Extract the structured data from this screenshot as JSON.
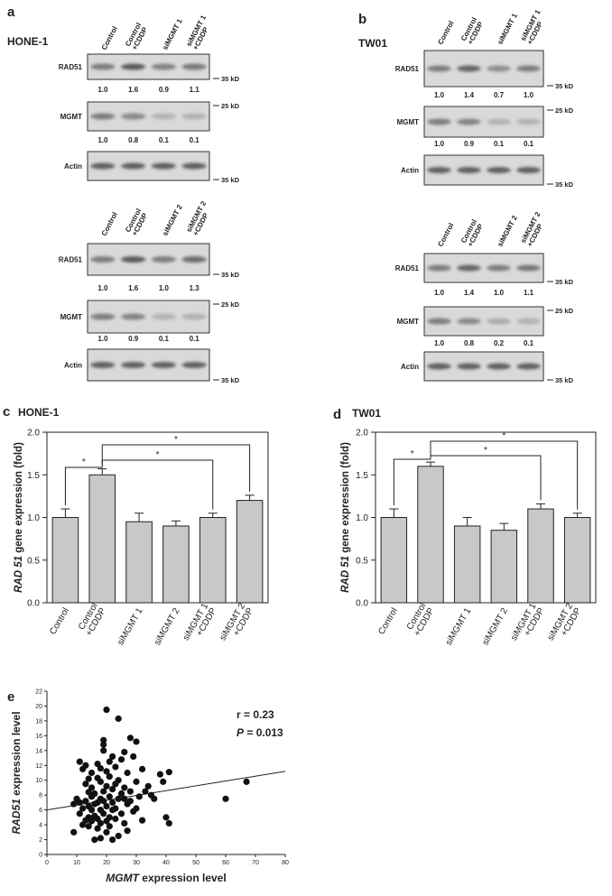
{
  "blots": [
    {
      "label": "a",
      "cell_line": "HONE-1",
      "sets": [
        {
          "lanes": [
            "Control",
            "Control\n+CDDP",
            "siMGMT 1",
            "siMGMT 1\n+CDDP"
          ],
          "rows": [
            {
              "name": "RAD51",
              "marker": "35 kD",
              "quant": [
                "1.0",
                "1.6",
                "0.9",
                "1.1"
              ]
            },
            {
              "name": "MGMT",
              "marker": "25 kD",
              "quant": [
                "1.0",
                "0.8",
                "0.1",
                "0.1"
              ]
            },
            {
              "name": "Actin",
              "marker": "35 kD"
            }
          ]
        },
        {
          "lanes": [
            "Control",
            "Control\n+CDDP",
            "siMGMT 2",
            "siMGMT 2\n+CDDP"
          ],
          "rows": [
            {
              "name": "RAD51",
              "marker": "35 kD",
              "quant": [
                "1.0",
                "1.6",
                "1.0",
                "1.3"
              ]
            },
            {
              "name": "MGMT",
              "marker": "25 kD",
              "quant": [
                "1.0",
                "0.9",
                "0.1",
                "0.1"
              ]
            },
            {
              "name": "Actin",
              "marker": "35 kD"
            }
          ]
        }
      ]
    },
    {
      "label": "b",
      "cell_line": "TW01",
      "sets": [
        {
          "lanes": [
            "Control",
            "Control\n+CDDP",
            "siMGMT 1",
            "siMGMT 1\n+CDDP"
          ],
          "rows": [
            {
              "name": "RAD51",
              "marker": "35 kD",
              "quant": [
                "1.0",
                "1.4",
                "0.7",
                "1.0"
              ]
            },
            {
              "name": "MGMT",
              "marker": "25 kD",
              "quant": [
                "1.0",
                "0.9",
                "0.1",
                "0.1"
              ]
            },
            {
              "name": "Actin",
              "marker": "35 kD"
            }
          ]
        },
        {
          "lanes": [
            "Control",
            "Control\n+CDDP",
            "siMGMT 2",
            "siMGMT 2\n+CDDP"
          ],
          "rows": [
            {
              "name": "RAD51",
              "marker": "35 kD",
              "quant": [
                "1.0",
                "1.4",
                "1.0",
                "1.1"
              ]
            },
            {
              "name": "MGMT",
              "marker": "25 kD",
              "quant": [
                "1.0",
                "0.8",
                "0.2",
                "0.1"
              ]
            },
            {
              "name": "Actin",
              "marker": "35 kD"
            }
          ]
        }
      ]
    }
  ],
  "chart_data": [
    {
      "type": "bar",
      "panel_label": "c",
      "title": "HONE-1",
      "ylabel": [
        {
          "text": "RAD 51",
          "italic": true
        },
        {
          "text": " gene expression (fold)"
        }
      ],
      "categories": [
        "Control",
        "Control\n+CDDP",
        "siMGMT 1",
        "siMGMT 2",
        "siMGMT 1\n+CDDP",
        "siMGMT 2\n+CDDP"
      ],
      "values": [
        1.0,
        1.5,
        0.95,
        0.9,
        1.0,
        1.2
      ],
      "errors": [
        0.1,
        0.07,
        0.1,
        0.06,
        0.05,
        0.06
      ],
      "color": "#c8c8c8",
      "ylim": [
        0,
        2
      ],
      "yticks": [
        {
          "value": 0,
          "label": "0.0"
        },
        0.5,
        {
          "value": 1,
          "label": "1.0"
        },
        1.5,
        {
          "value": 2,
          "label": "2.0"
        }
      ],
      "significance": [
        {
          "from": 0,
          "to": 1,
          "label": "*"
        },
        {
          "from": 1,
          "to": 4,
          "label": "*"
        },
        {
          "from": 1,
          "to": 5,
          "label": "*"
        }
      ]
    },
    {
      "type": "bar",
      "panel_label": "d",
      "title": "TW01",
      "ylabel": [
        {
          "text": "RAD 51",
          "italic": true
        },
        {
          "text": " gene expression (fold)"
        }
      ],
      "categories": [
        "Control",
        "Control\n+CDDP",
        "siMGMT 1",
        "siMGMT 2",
        "siMGMT 1\n+CDDP",
        "siMGMT 2\n+CDDP"
      ],
      "values": [
        1.0,
        1.6,
        0.9,
        0.85,
        1.1,
        1.0
      ],
      "errors": [
        0.1,
        0.05,
        0.1,
        0.08,
        0.06,
        0.05
      ],
      "color": "#c8c8c8",
      "ylim": [
        0,
        2
      ],
      "yticks": [
        {
          "value": 0,
          "label": "0.0"
        },
        0.5,
        {
          "value": 1,
          "label": "1.0"
        },
        1.5,
        {
          "value": 2,
          "label": "2.0"
        }
      ],
      "significance": [
        {
          "from": 0,
          "to": 1,
          "label": "*"
        },
        {
          "from": 1,
          "to": 4,
          "label": "*"
        },
        {
          "from": 1,
          "to": 5,
          "label": "*"
        }
      ]
    },
    {
      "type": "scatter",
      "panel_label": "e",
      "xlabel": [
        {
          "text": "MGMT",
          "italic": true
        },
        {
          "text": " expression level"
        }
      ],
      "ylabel": [
        {
          "text": "RAD51",
          "italic": true
        },
        {
          "text": " expression level"
        }
      ],
      "annotations": [
        [
          {
            "text": "r = 0.23"
          }
        ],
        [
          {
            "text": "P",
            "italic": true
          },
          {
            "text": " = 0.013"
          }
        ]
      ],
      "color": "#111111",
      "x": [
        9,
        9,
        10,
        11,
        11,
        11,
        12,
        12,
        12,
        13,
        13,
        13,
        13,
        14,
        14,
        14,
        14,
        15,
        15,
        15,
        15,
        15,
        16,
        16,
        16,
        16,
        17,
        17,
        17,
        17,
        17,
        18,
        18,
        18,
        18,
        18,
        19,
        19,
        19,
        19,
        19,
        19,
        20,
        20,
        20,
        20,
        20,
        20,
        21,
        21,
        21,
        21,
        21,
        22,
        22,
        22,
        22,
        22,
        23,
        23,
        23,
        23,
        24,
        24,
        24,
        24,
        25,
        25,
        25,
        26,
        26,
        26,
        27,
        27,
        27,
        28,
        28,
        28,
        29,
        29,
        30,
        30,
        30,
        31,
        32,
        33,
        35,
        36,
        38,
        39,
        40,
        41,
        41,
        60,
        67,
        32,
        34,
        26,
        18,
        14
      ],
      "y": [
        3,
        6.8,
        7.5,
        12.5,
        7,
        5.5,
        4,
        6.2,
        11.5,
        12,
        4.6,
        7.2,
        9.5,
        5,
        6.5,
        10.2,
        3.8,
        4.5,
        6,
        7.8,
        9,
        11,
        2,
        5.2,
        6.8,
        8.2,
        3.5,
        4.8,
        7,
        10.3,
        12.2,
        2.2,
        4.2,
        6,
        7.5,
        9.8,
        5.5,
        7.2,
        8.5,
        14,
        14.8,
        15.4,
        19.5,
        3,
        4.5,
        6.5,
        9.2,
        11.2,
        5,
        7.8,
        10.5,
        12.5,
        3.8,
        6,
        7,
        8.8,
        13.2,
        2,
        4.8,
        6.2,
        9.5,
        11.8,
        2.5,
        7.5,
        10,
        18.3,
        5.5,
        8.2,
        12.8,
        4.2,
        7.5,
        9,
        6.8,
        11,
        3.2,
        7.2,
        15.7,
        8.5,
        5.8,
        13.2,
        6.2,
        15.2,
        9.8,
        7.8,
        11.5,
        8.5,
        8,
        7.5,
        10.8,
        9.8,
        5,
        4.2,
        11.1,
        7.5,
        9.8,
        4.6,
        9.2,
        13.8,
        11.6,
        8.4
      ],
      "trend_line": {
        "x": [
          0,
          80
        ],
        "y": [
          6.0,
          11.2
        ]
      },
      "xlim": [
        0,
        80
      ],
      "xticks": [
        0,
        10,
        20,
        30,
        40,
        50,
        60,
        70,
        80
      ],
      "ylim": [
        0,
        22
      ],
      "yticks": [
        0,
        2,
        4,
        6,
        8,
        10,
        12,
        14,
        16,
        18,
        20,
        22
      ]
    }
  ]
}
